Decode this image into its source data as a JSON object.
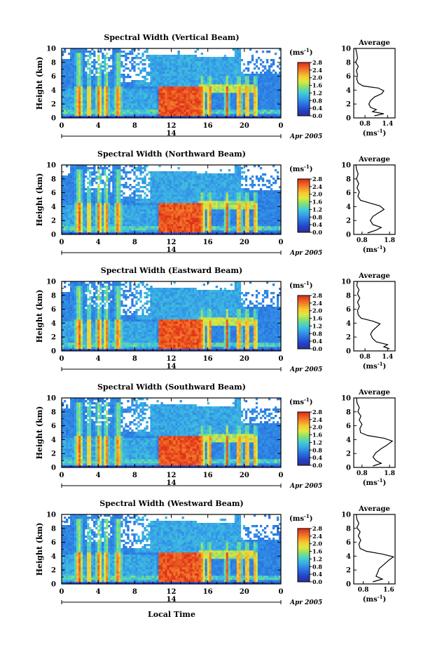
{
  "chart_data": [
    {
      "type": "heatmap",
      "title": "Spectral Width (Vertical Beam)",
      "ylabel": "Height (km)",
      "yticks": [
        "0",
        "2",
        "4",
        "6",
        "8",
        "10"
      ],
      "xticks": [
        "0",
        "4",
        "8",
        "12",
        "16",
        "20",
        "0"
      ],
      "day_label": "14",
      "date_label": "Apr 2005",
      "ylim": [
        0,
        10
      ],
      "xlim": [
        0,
        24
      ],
      "colorbar": {
        "unit_label": "(ms",
        "unit_sup": "-1",
        "unit_close": ")",
        "ticks": [
          "0.0",
          "0.4",
          "0.8",
          "1.2",
          "1.6",
          "2.0",
          "2.4",
          "2.8"
        ],
        "range": [
          0,
          2.8
        ]
      },
      "profile": {
        "title": "Average",
        "xticks": [
          "0.8",
          "1.4"
        ],
        "xlim": [
          0.5,
          1.6
        ],
        "xlabel": "(ms",
        "xlabel_sup": "-1",
        "xlabel_close": ")",
        "yticks": [
          "0",
          "2",
          "4",
          "6",
          "8",
          "10"
        ],
        "points": [
          [
            1.05,
            0.3
          ],
          [
            1.3,
            0.6
          ],
          [
            1.0,
            0.9
          ],
          [
            1.1,
            1.2
          ],
          [
            0.95,
            1.5
          ],
          [
            0.9,
            2.0
          ],
          [
            0.95,
            2.5
          ],
          [
            1.05,
            3.0
          ],
          [
            1.25,
            3.5
          ],
          [
            1.3,
            3.9
          ],
          [
            1.15,
            4.3
          ],
          [
            0.75,
            4.6
          ],
          [
            0.62,
            5.0
          ],
          [
            0.58,
            5.6
          ],
          [
            0.6,
            6.2
          ],
          [
            0.57,
            6.8
          ],
          [
            0.62,
            7.4
          ],
          [
            0.55,
            8.0
          ],
          [
            0.6,
            8.6
          ],
          [
            0.58,
            9.3
          ],
          [
            0.55,
            10.0
          ]
        ]
      }
    },
    {
      "type": "heatmap",
      "title": "Spectral Width (Northward Beam)",
      "ylabel": "Height (km)",
      "yticks": [
        "0",
        "2",
        "4",
        "6",
        "8",
        "10"
      ],
      "xticks": [
        "0",
        "4",
        "8",
        "12",
        "16",
        "20",
        "0"
      ],
      "day_label": "14",
      "date_label": "Apr 2005",
      "ylim": [
        0,
        10
      ],
      "xlim": [
        0,
        24
      ],
      "colorbar": {
        "unit_label": "(ms",
        "unit_sup": "-1",
        "unit_close": ")",
        "ticks": [
          "0.0",
          "0.4",
          "0.8",
          "1.2",
          "1.6",
          "2.0",
          "2.4",
          "2.8"
        ],
        "range": [
          0,
          2.8
        ]
      },
      "profile": {
        "title": "Average",
        "xticks": [
          "0.8",
          "1.8"
        ],
        "xlim": [
          0.5,
          2.0
        ],
        "xlabel": "(ms",
        "xlabel_sup": "-1",
        "xlabel_close": ")",
        "yticks": [
          "0",
          "2",
          "4",
          "6",
          "8",
          "10"
        ],
        "points": [
          [
            1.0,
            0.2
          ],
          [
            1.3,
            0.6
          ],
          [
            1.5,
            1.0
          ],
          [
            1.2,
            1.4
          ],
          [
            1.1,
            2.0
          ],
          [
            1.2,
            2.6
          ],
          [
            1.4,
            3.1
          ],
          [
            1.6,
            3.6
          ],
          [
            1.45,
            4.1
          ],
          [
            1.1,
            4.5
          ],
          [
            0.75,
            4.9
          ],
          [
            0.65,
            5.5
          ],
          [
            0.7,
            6.1
          ],
          [
            0.62,
            6.7
          ],
          [
            0.68,
            7.3
          ],
          [
            0.6,
            8.0
          ],
          [
            0.66,
            8.7
          ],
          [
            0.6,
            9.4
          ],
          [
            0.58,
            10.0
          ]
        ]
      }
    },
    {
      "type": "heatmap",
      "title": "Spectral Width (Eastward Beam)",
      "ylabel": "Height (km)",
      "yticks": [
        "0",
        "2",
        "4",
        "6",
        "8",
        "10"
      ],
      "xticks": [
        "0",
        "4",
        "8",
        "12",
        "16",
        "20",
        "0"
      ],
      "day_label": "14",
      "date_label": "Apr 2005",
      "ylim": [
        0,
        10
      ],
      "xlim": [
        0,
        24
      ],
      "colorbar": {
        "unit_label": "(ms",
        "unit_sup": "-1",
        "unit_close": ")",
        "ticks": [
          "0.0",
          "0.4",
          "0.8",
          "1.2",
          "1.6",
          "2.0",
          "2.4",
          "2.8"
        ],
        "range": [
          0,
          2.8
        ]
      },
      "profile": {
        "title": "Average",
        "xticks": [
          "0.8",
          "1.4"
        ],
        "xlim": [
          0.5,
          1.6
        ],
        "xlabel": "(ms",
        "xlabel_sup": "-1",
        "xlabel_close": ")",
        "yticks": [
          "0",
          "2",
          "4",
          "6",
          "8",
          "10"
        ],
        "points": [
          [
            1.45,
            0.3
          ],
          [
            1.3,
            0.6
          ],
          [
            1.4,
            0.9
          ],
          [
            1.1,
            1.3
          ],
          [
            1.0,
            1.8
          ],
          [
            0.95,
            2.4
          ],
          [
            1.0,
            2.9
          ],
          [
            1.1,
            3.4
          ],
          [
            1.2,
            3.9
          ],
          [
            1.0,
            4.3
          ],
          [
            0.7,
            4.7
          ],
          [
            0.62,
            5.2
          ],
          [
            0.6,
            5.8
          ],
          [
            0.65,
            6.4
          ],
          [
            0.6,
            7.0
          ],
          [
            0.66,
            7.6
          ],
          [
            0.6,
            8.2
          ],
          [
            0.64,
            8.8
          ],
          [
            0.58,
            9.4
          ],
          [
            0.6,
            10.0
          ]
        ]
      }
    },
    {
      "type": "heatmap",
      "title": "Spectral Width (Southward Beam)",
      "ylabel": "Height (km)",
      "yticks": [
        "0",
        "2",
        "4",
        "6",
        "8",
        "10"
      ],
      "xticks": [
        "0",
        "4",
        "8",
        "12",
        "16",
        "20",
        "0"
      ],
      "day_label": "14",
      "date_label": "Apr 2005",
      "ylim": [
        0,
        10
      ],
      "xlim": [
        0,
        24
      ],
      "colorbar": {
        "unit_label": "(ms",
        "unit_sup": "-1",
        "unit_close": ")",
        "ticks": [
          "0.0",
          "0.4",
          "0.8",
          "1.2",
          "1.6",
          "2.0",
          "2.4",
          "2.8"
        ],
        "range": [
          0,
          2.8
        ]
      },
      "profile": {
        "title": "Average",
        "xticks": [
          "0.8",
          "1.8"
        ],
        "xlim": [
          0.5,
          2.0
        ],
        "xlabel": "(ms",
        "xlabel_sup": "-1",
        "xlabel_close": ")",
        "yticks": [
          "0",
          "2",
          "4",
          "6",
          "8",
          "10"
        ],
        "points": [
          [
            1.2,
            0.2
          ],
          [
            1.5,
            0.6
          ],
          [
            1.3,
            1.0
          ],
          [
            1.2,
            1.5
          ],
          [
            1.3,
            2.1
          ],
          [
            1.5,
            2.7
          ],
          [
            1.7,
            3.2
          ],
          [
            1.9,
            3.8
          ],
          [
            1.6,
            4.2
          ],
          [
            1.0,
            4.6
          ],
          [
            0.75,
            5.0
          ],
          [
            0.72,
            5.6
          ],
          [
            0.8,
            6.2
          ],
          [
            0.7,
            6.8
          ],
          [
            0.76,
            7.4
          ],
          [
            0.65,
            8.0
          ],
          [
            0.7,
            8.6
          ],
          [
            0.62,
            9.3
          ],
          [
            0.6,
            10.0
          ]
        ]
      }
    },
    {
      "type": "heatmap",
      "title": "Spectral Width (Westward Beam)",
      "ylabel": "Height (km)",
      "yticks": [
        "0",
        "2",
        "4",
        "6",
        "8",
        "10"
      ],
      "xticks": [
        "0",
        "4",
        "8",
        "12",
        "16",
        "20",
        "0"
      ],
      "day_label": "14",
      "date_label": "Apr 2005",
      "ylim": [
        0,
        10
      ],
      "xlim": [
        0,
        24
      ],
      "colorbar": {
        "unit_label": "(ms",
        "unit_sup": "-1",
        "unit_close": ")",
        "ticks": [
          "0.0",
          "0.4",
          "0.8",
          "1.2",
          "1.6",
          "2.0",
          "2.4",
          "2.8"
        ],
        "range": [
          0,
          2.8
        ]
      },
      "profile": {
        "title": "Average",
        "xticks": [
          "0.8",
          "1.6"
        ],
        "xlim": [
          0.5,
          1.8
        ],
        "xlabel": "(ms",
        "xlabel_sup": "-1",
        "xlabel_close": ")",
        "yticks": [
          "0",
          "2",
          "4",
          "6",
          "8",
          "10"
        ],
        "points": [
          [
            1.1,
            0.3
          ],
          [
            1.4,
            0.7
          ],
          [
            1.2,
            1.1
          ],
          [
            1.25,
            1.6
          ],
          [
            1.3,
            2.2
          ],
          [
            1.45,
            2.8
          ],
          [
            1.6,
            3.4
          ],
          [
            1.75,
            3.9
          ],
          [
            1.4,
            4.3
          ],
          [
            0.9,
            4.7
          ],
          [
            0.7,
            5.1
          ],
          [
            0.66,
            5.7
          ],
          [
            0.72,
            6.3
          ],
          [
            0.64,
            6.9
          ],
          [
            0.7,
            7.5
          ],
          [
            0.6,
            8.1
          ],
          [
            0.66,
            8.7
          ],
          [
            0.6,
            9.3
          ],
          [
            0.58,
            10.0
          ]
        ]
      }
    }
  ],
  "xlabel": "Local Time"
}
